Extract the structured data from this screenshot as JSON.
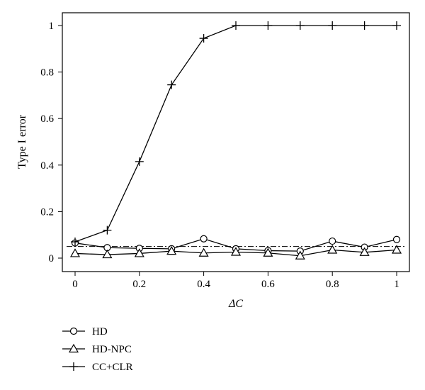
{
  "chart_data": {
    "type": "line",
    "title": "",
    "xlabel": "ΔC",
    "ylabel": "Type I error",
    "xlim": [
      0,
      1
    ],
    "ylim": [
      0,
      1
    ],
    "x": [
      0,
      0.1,
      0.2,
      0.3,
      0.4,
      0.5,
      0.6,
      0.7,
      0.8,
      0.9,
      1.0
    ],
    "x_ticks": [
      "0",
      "0.2",
      "0.4",
      "0.6",
      "0.8",
      "1"
    ],
    "y_ticks": [
      "0",
      "0.2",
      "0.4",
      "0.6",
      "0.8",
      "1"
    ],
    "reference_line": {
      "y": 0.05,
      "style": "dash-dot"
    },
    "legend_position": "bottom-left, below plot",
    "grid": false,
    "series": [
      {
        "name": "HD",
        "marker": "circle",
        "values": [
          0.065,
          0.045,
          0.042,
          0.04,
          0.083,
          0.04,
          0.032,
          0.03,
          0.073,
          0.047,
          0.08
        ]
      },
      {
        "name": "HD-NPC",
        "marker": "triangle",
        "values": [
          0.02,
          0.015,
          0.02,
          0.03,
          0.022,
          0.026,
          0.022,
          0.01,
          0.035,
          0.025,
          0.035
        ]
      },
      {
        "name": "CC+CLR",
        "marker": "plus",
        "values": [
          0.07,
          0.12,
          0.415,
          0.745,
          0.945,
          1.0,
          1.0,
          1.0,
          1.0,
          1.0,
          1.0
        ]
      }
    ]
  }
}
